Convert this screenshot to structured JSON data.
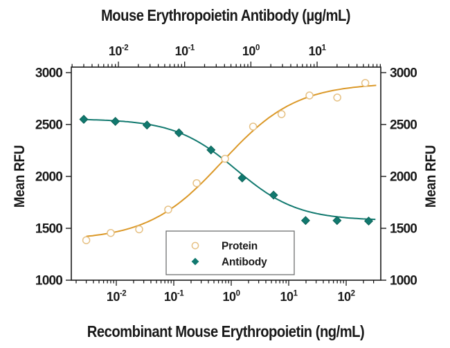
{
  "title_top": "Mouse Erythropoietin Antibody (µg/mL)",
  "title_bottom": "Recombinant Mouse Erythropoietin (ng/mL)",
  "ylabel_left": "Mean RFU",
  "ylabel_right": "Mean RFU",
  "legend": {
    "items": [
      {
        "label": "Protein",
        "marker": "open-circle"
      },
      {
        "label": "Antibody",
        "marker": "filled-diamond"
      }
    ]
  },
  "colors": {
    "protein_line": "#DB9827",
    "protein_marker": "#E6C184",
    "antibody": "#11796F",
    "antibody_dark": "#0D6358",
    "axis": "#1A1A1A",
    "legend_border": "#6E6F71"
  },
  "chart_data": {
    "type": "line",
    "title_top_axis": "Mouse Erythropoietin Antibody (µg/mL)",
    "title_bottom_axis": "Recombinant Mouse Erythropoietin (ng/mL)",
    "y_axis": {
      "label": "Mean RFU",
      "ticks": [
        3000,
        2500,
        2000,
        1500,
        1000
      ],
      "range": [
        1000,
        3053
      ],
      "sides": [
        "left",
        "right"
      ]
    },
    "x_axis_bottom": {
      "label": "Recombinant Mouse Erythropoietin (ng/mL)",
      "unit": "ng/mL",
      "scale": "log10",
      "labeled_decades": [
        -2,
        -1,
        0,
        1,
        2
      ],
      "log10_range": [
        -2.783,
        2.602
      ]
    },
    "x_axis_top": {
      "label": "Mouse Erythropoietin Antibody (µg/mL)",
      "unit": "µg/mL",
      "scale": "log10",
      "labeled_decades": [
        -2,
        -1,
        0,
        1
      ],
      "log10_range": [
        -2.711,
        1.961
      ]
    },
    "grid": false,
    "legend_position": "bottom-center-inside",
    "series": [
      {
        "name": "Protein",
        "axis": "bottom",
        "marker": "open-circle",
        "x": [
          0.003,
          0.008,
          0.025,
          0.08,
          0.25,
          0.78,
          2.4,
          7.5,
          23,
          70,
          215
        ],
        "y": [
          1385,
          1455,
          1490,
          1680,
          1935,
          2170,
          2480,
          2600,
          2780,
          2760,
          2900
        ],
        "fit_4pl": {
          "bottom": 1385,
          "top": 2900,
          "ec50": 0.7,
          "hill": 0.675
        }
      },
      {
        "name": "Antibody",
        "axis": "top",
        "marker": "filled-diamond",
        "x": [
          0.003,
          0.009,
          0.027,
          0.082,
          0.25,
          0.74,
          2.2,
          6.7,
          20,
          60
        ],
        "y": [
          2550,
          2530,
          2495,
          2420,
          2255,
          1985,
          1820,
          1575,
          1575,
          1570
        ],
        "fit_4pl": {
          "bottom": 1575,
          "top": 2555,
          "ic50": 0.6,
          "hill": 0.932
        }
      }
    ]
  }
}
